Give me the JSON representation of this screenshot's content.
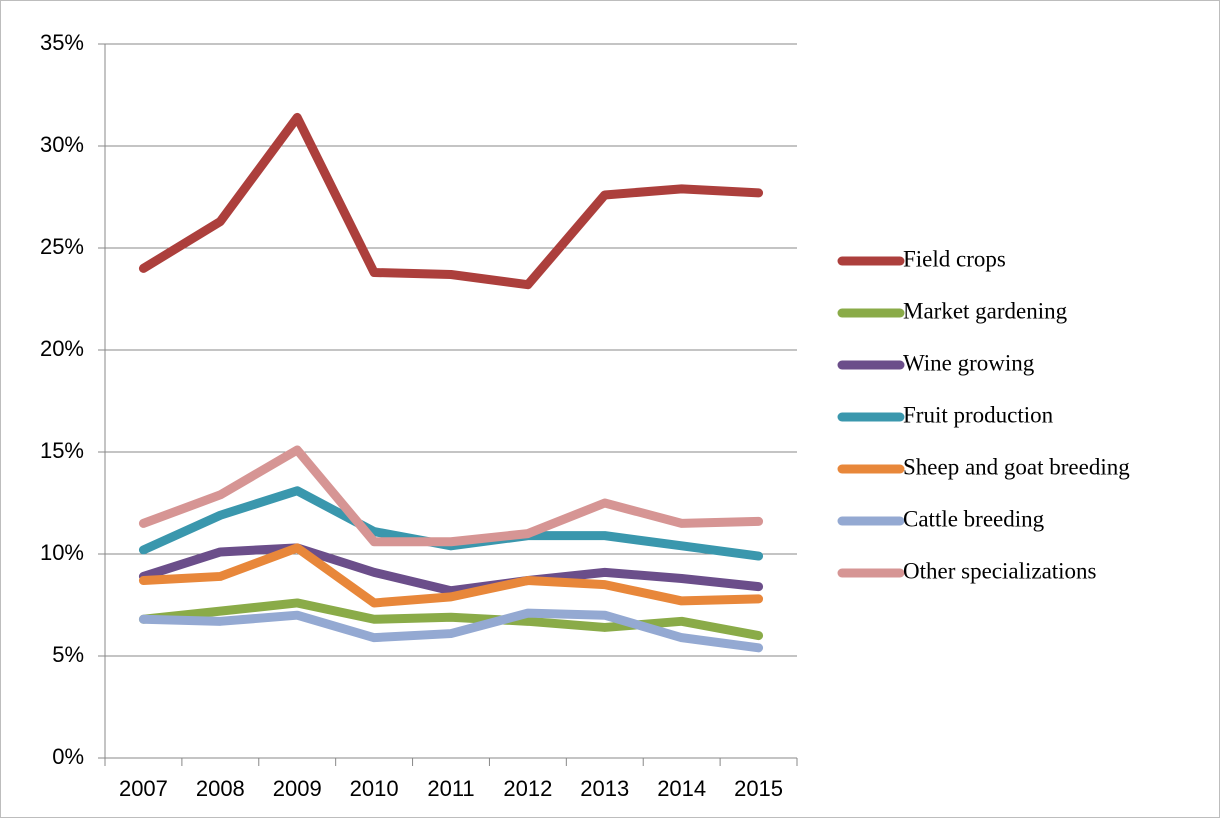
{
  "chart_data": {
    "type": "line",
    "categories": [
      "2007",
      "2008",
      "2009",
      "2010",
      "2011",
      "2012",
      "2013",
      "2014",
      "2015"
    ],
    "series": [
      {
        "name": "Field crops",
        "color": "#ac3f3c",
        "values": [
          24.0,
          26.3,
          31.4,
          23.8,
          23.7,
          23.2,
          27.6,
          27.9,
          27.7
        ]
      },
      {
        "name": "Market gardening",
        "color": "#8aab48",
        "values": [
          6.8,
          7.2,
          7.6,
          6.8,
          6.9,
          6.7,
          6.4,
          6.7,
          6.0
        ]
      },
      {
        "name": "Wine growing",
        "color": "#6b4e8a",
        "values": [
          8.9,
          10.1,
          10.3,
          9.1,
          8.2,
          8.7,
          9.1,
          8.8,
          8.4
        ]
      },
      {
        "name": "Fruit production",
        "color": "#3a97ad",
        "values": [
          10.2,
          11.9,
          13.1,
          11.1,
          10.4,
          10.9,
          10.9,
          10.4,
          9.9
        ]
      },
      {
        "name": "Sheep and goat breeding",
        "color": "#e8873a",
        "values": [
          8.7,
          8.9,
          10.3,
          7.6,
          7.9,
          8.7,
          8.5,
          7.7,
          7.8
        ]
      },
      {
        "name": "Cattle breeding",
        "color": "#94a9d2",
        "values": [
          6.8,
          6.7,
          7.0,
          5.9,
          6.1,
          7.1,
          7.0,
          5.9,
          5.4
        ]
      },
      {
        "name": "Other specializations",
        "color": "#d69594",
        "values": [
          11.5,
          12.9,
          15.1,
          10.6,
          10.6,
          11.0,
          12.5,
          11.5,
          11.6
        ]
      }
    ],
    "ylim": [
      0,
      35
    ],
    "yticks": [
      {
        "value": 0,
        "label": "0%"
      },
      {
        "value": 5,
        "label": "5%"
      },
      {
        "value": 10,
        "label": "10%"
      },
      {
        "value": 15,
        "label": "15%"
      },
      {
        "value": 20,
        "label": "20%"
      },
      {
        "value": 25,
        "label": "25%"
      },
      {
        "value": 30,
        "label": "30%"
      },
      {
        "value": 35,
        "label": "35%"
      }
    ],
    "grid": true,
    "legend": "right"
  }
}
